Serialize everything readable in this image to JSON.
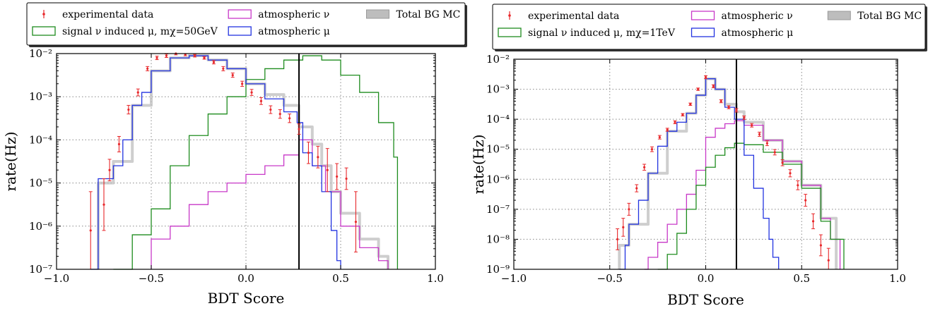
{
  "colors": {
    "data": "#e8282b",
    "signal": "#1e8c1e",
    "atm_nu": "#c838c8",
    "atm_mu": "#2233e0",
    "total_bg": "#bdbdbd",
    "cut_line": "#000000"
  },
  "chart_data": [
    {
      "type": "line",
      "step": true,
      "log_y": true,
      "grid": true,
      "xlabel": "BDT Score",
      "ylabel": "rate(Hz)",
      "xlim": [
        -1.0,
        1.0
      ],
      "ylim_exp": [
        -7,
        -2
      ],
      "xticks": [
        "−1.0",
        "−0.5",
        "0.0",
        "0.5",
        "1.0"
      ],
      "yticks": [
        "10⁻⁷",
        "10⁻⁶",
        "10⁻⁵",
        "10⁻⁴",
        "10⁻³",
        "10⁻²"
      ],
      "cut": 0.28,
      "legend": {
        "placement": "top",
        "data": "experimental data",
        "signal": "signal ν induced μ, mχ=50GeV",
        "atm_nu": "atmospheric ν",
        "atm_mu": "atmospheric μ",
        "total_bg": "Total BG MC"
      },
      "series": [
        {
          "key": "atm_mu",
          "name": "atmospheric μ",
          "x": [
            -0.82,
            -0.78,
            -0.7,
            -0.65,
            -0.6,
            -0.55,
            -0.5,
            -0.4,
            -0.3,
            -0.2,
            -0.1,
            0.0,
            0.1,
            0.2,
            0.27,
            0.3,
            0.35,
            0.4,
            0.45,
            0.48,
            0.5
          ],
          "y": [
            -7.0,
            -4.9,
            -4.6,
            -4.0,
            -3.2,
            -2.9,
            -2.4,
            -2.1,
            -2.05,
            -2.15,
            -2.35,
            -2.7,
            -3.05,
            -3.35,
            -3.6,
            -4.3,
            -4.6,
            -5.2,
            -6.1,
            -6.8,
            -7.0
          ]
        },
        {
          "key": "atm_nu",
          "name": "atmospheric ν",
          "x": [
            -0.5,
            -0.4,
            -0.3,
            -0.2,
            -0.1,
            0.0,
            0.1,
            0.2,
            0.28,
            0.35,
            0.42,
            0.5,
            0.6,
            0.7,
            0.75
          ],
          "y": [
            -6.3,
            -6.0,
            -5.5,
            -5.2,
            -5.0,
            -4.8,
            -4.6,
            -4.35,
            -4.0,
            -4.6,
            -5.2,
            -6.0,
            -6.5,
            -6.8,
            -7.0
          ]
        },
        {
          "key": "signal",
          "name": "signal ν induced μ, mχ=50GeV",
          "x": [
            -0.7,
            -0.6,
            -0.5,
            -0.4,
            -0.3,
            -0.2,
            -0.1,
            0.0,
            0.1,
            0.2,
            0.3,
            0.4,
            0.5,
            0.6,
            0.7,
            0.78,
            0.8
          ],
          "y": [
            -7.0,
            -6.2,
            -5.6,
            -4.6,
            -3.9,
            -3.4,
            -3.0,
            -2.6,
            -2.35,
            -2.15,
            -2.05,
            -2.15,
            -2.5,
            -2.9,
            -3.6,
            -4.4,
            -7.0
          ]
        },
        {
          "key": "total_bg",
          "name": "Total BG MC",
          "x": [
            -0.78,
            -0.7,
            -0.6,
            -0.5,
            -0.4,
            -0.3,
            -0.2,
            -0.1,
            0.0,
            0.1,
            0.2,
            0.28,
            0.35,
            0.4,
            0.45,
            0.5,
            0.6,
            0.7,
            0.75
          ],
          "y": [
            -5.0,
            -4.5,
            -3.2,
            -2.4,
            -2.1,
            -2.05,
            -2.15,
            -2.35,
            -2.7,
            -2.95,
            -3.2,
            -3.7,
            -4.1,
            -4.6,
            -5.2,
            -5.7,
            -6.3,
            -6.7,
            -7.0
          ]
        }
      ],
      "data_points": {
        "x": [
          -0.82,
          -0.75,
          -0.72,
          -0.67,
          -0.62,
          -0.57,
          -0.52,
          -0.47,
          -0.42,
          -0.37,
          -0.32,
          -0.27,
          -0.22,
          -0.17,
          -0.12,
          -0.07,
          -0.02,
          0.03,
          0.08,
          0.13,
          0.18,
          0.23,
          0.28,
          0.33,
          0.38,
          0.43,
          0.48,
          0.53,
          0.58
        ],
        "y": [
          -6.1,
          -5.5,
          -4.7,
          -4.1,
          -3.3,
          -2.9,
          -2.35,
          -2.1,
          -2.05,
          -2.0,
          -2.02,
          -2.05,
          -2.1,
          -2.2,
          -2.35,
          -2.5,
          -2.7,
          -2.9,
          -3.1,
          -3.3,
          -3.4,
          -3.5,
          -3.75,
          -4.3,
          -4.4,
          -4.7,
          -4.85,
          -4.9,
          -5.9
        ],
        "err": [
          0.9,
          0.6,
          0.25,
          0.18,
          0.1,
          0.08,
          0.05,
          0.04,
          0.04,
          0.03,
          0.03,
          0.03,
          0.03,
          0.04,
          0.05,
          0.05,
          0.06,
          0.07,
          0.08,
          0.09,
          0.1,
          0.1,
          0.12,
          0.25,
          0.25,
          0.5,
          0.3,
          0.25,
          0.7
        ]
      }
    },
    {
      "type": "line",
      "step": true,
      "log_y": true,
      "grid": true,
      "xlabel": "BDT Score",
      "ylabel": "rate(Hz)",
      "xlim": [
        -1.0,
        1.0
      ],
      "ylim_exp": [
        -9,
        -2
      ],
      "xticks": [
        "−1.0",
        "−0.5",
        "0.0",
        "0.5",
        "1.0"
      ],
      "yticks": [
        "10⁻⁹",
        "10⁻⁸",
        "10⁻⁷",
        "10⁻⁶",
        "10⁻⁵",
        "10⁻⁴",
        "10⁻³",
        "10⁻²"
      ],
      "cut": 0.16,
      "legend": {
        "placement": "top",
        "data": "experimental data",
        "signal": "signal ν induced μ, mχ=1TeV",
        "atm_nu": "atmospheric ν",
        "atm_mu": "atmospheric μ",
        "total_bg": "Total BG MC"
      },
      "series": [
        {
          "key": "atm_mu",
          "name": "atmospheric μ",
          "x": [
            -0.45,
            -0.42,
            -0.4,
            -0.35,
            -0.3,
            -0.25,
            -0.2,
            -0.15,
            -0.1,
            -0.05,
            0.0,
            0.05,
            0.1,
            0.15,
            0.2,
            0.25,
            0.3,
            0.33,
            0.35,
            0.38
          ],
          "y": [
            -9.0,
            -8.2,
            -7.5,
            -6.7,
            -5.8,
            -4.9,
            -4.4,
            -4.1,
            -3.8,
            -3.2,
            -2.65,
            -3.0,
            -3.6,
            -4.0,
            -5.2,
            -6.3,
            -7.3,
            -8.0,
            -8.6,
            -9.0
          ]
        },
        {
          "key": "atm_nu",
          "name": "atmospheric ν",
          "x": [
            -0.32,
            -0.3,
            -0.25,
            -0.2,
            -0.15,
            -0.1,
            -0.05,
            0.0,
            0.05,
            0.1,
            0.15,
            0.2,
            0.3,
            0.4,
            0.5,
            0.6,
            0.65,
            0.7
          ],
          "y": [
            -9.0,
            -8.6,
            -8.1,
            -7.5,
            -7.0,
            -6.5,
            -5.7,
            -4.6,
            -4.3,
            -4.15,
            -4.05,
            -4.2,
            -4.7,
            -5.4,
            -6.2,
            -7.3,
            -8.0,
            -9.0
          ]
        },
        {
          "key": "signal",
          "name": "signal ν induced μ, mχ=1TeV",
          "x": [
            -0.25,
            -0.2,
            -0.15,
            -0.1,
            -0.05,
            0.0,
            0.05,
            0.1,
            0.15,
            0.2,
            0.3,
            0.4,
            0.5,
            0.6,
            0.65,
            0.72
          ],
          "y": [
            -9.0,
            -8.5,
            -7.8,
            -7.0,
            -6.2,
            -5.6,
            -5.2,
            -4.95,
            -4.8,
            -4.85,
            -5.1,
            -5.5,
            -6.3,
            -7.4,
            -8.0,
            -9.0
          ]
        },
        {
          "key": "total_bg",
          "name": "Total BG MC",
          "x": [
            -0.45,
            -0.4,
            -0.3,
            -0.2,
            -0.1,
            -0.05,
            0.0,
            0.05,
            0.1,
            0.16,
            0.2,
            0.3,
            0.4,
            0.5,
            0.6,
            0.68
          ],
          "y": [
            -8.2,
            -7.5,
            -5.8,
            -4.4,
            -3.8,
            -3.2,
            -2.65,
            -3.0,
            -3.5,
            -3.75,
            -4.1,
            -4.7,
            -5.4,
            -6.2,
            -7.3,
            -9.0
          ]
        }
      ],
      "data_points": {
        "x": [
          -0.46,
          -0.43,
          -0.4,
          -0.36,
          -0.32,
          -0.28,
          -0.24,
          -0.2,
          -0.16,
          -0.12,
          -0.08,
          -0.04,
          0.0,
          0.04,
          0.08,
          0.12,
          0.16,
          0.2,
          0.24,
          0.28,
          0.32,
          0.36,
          0.4,
          0.44,
          0.48,
          0.52,
          0.56,
          0.6,
          0.64
        ],
        "y": [
          -8.0,
          -7.6,
          -7.0,
          -6.3,
          -5.6,
          -5.0,
          -4.6,
          -4.35,
          -4.1,
          -3.85,
          -3.5,
          -3.0,
          -2.6,
          -2.9,
          -3.4,
          -3.6,
          -3.7,
          -3.95,
          -4.2,
          -4.5,
          -4.8,
          -5.1,
          -5.45,
          -5.8,
          -6.2,
          -6.7,
          -7.4,
          -8.2,
          -8.7
        ],
        "err": [
          0.35,
          0.3,
          0.2,
          0.12,
          0.1,
          0.08,
          0.06,
          0.05,
          0.05,
          0.04,
          0.04,
          0.04,
          0.05,
          0.05,
          0.05,
          0.05,
          0.06,
          0.06,
          0.06,
          0.07,
          0.08,
          0.09,
          0.1,
          0.12,
          0.15,
          0.2,
          0.25,
          0.35,
          0.4
        ]
      }
    }
  ]
}
